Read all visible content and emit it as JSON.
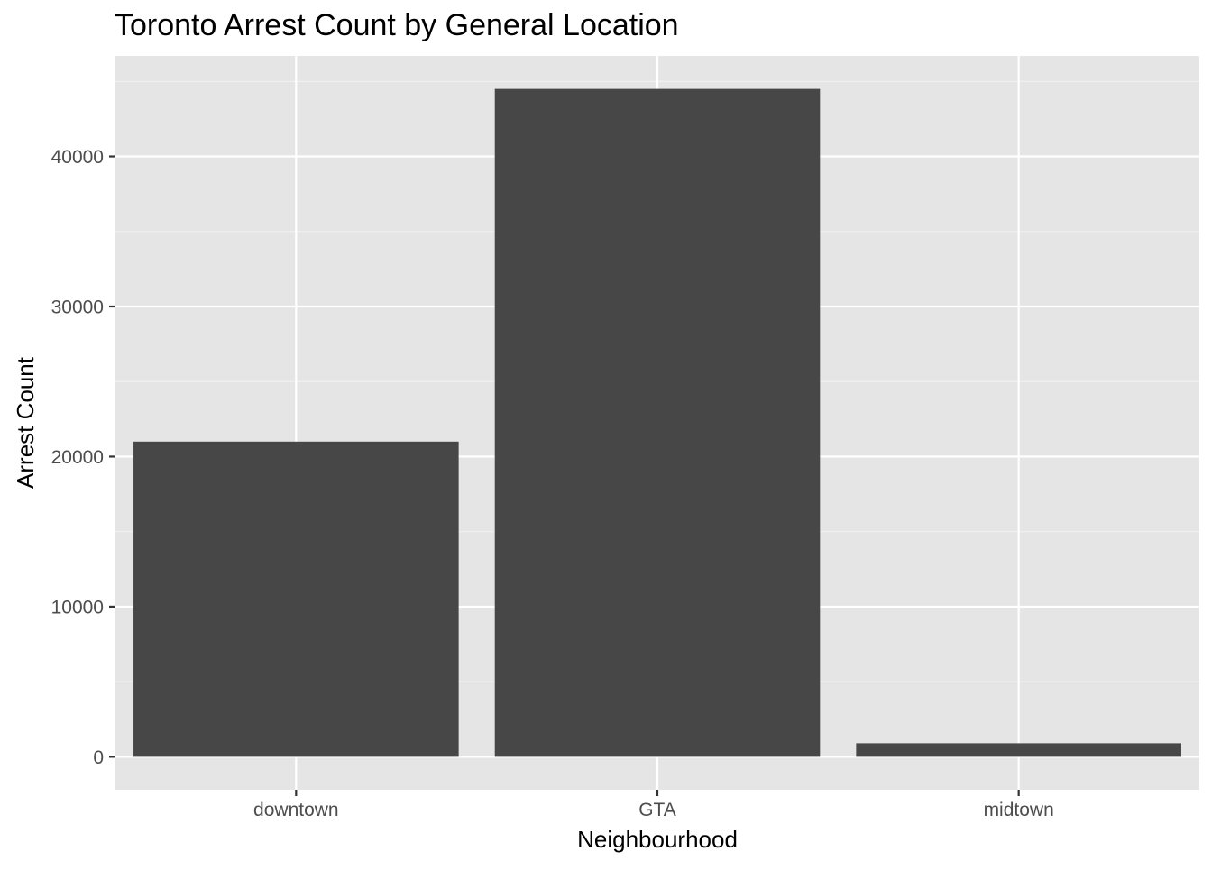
{
  "chart_data": {
    "type": "bar",
    "title": "Toronto Arrest Count by General Location",
    "xlabel": "Neighbourhood",
    "ylabel": "Arrest Count",
    "categories": [
      "downtown",
      "GTA",
      "midtown"
    ],
    "values": [
      21000,
      44500,
      900
    ],
    "ylim": [
      -2200,
      46700
    ],
    "yticks": [
      0,
      10000,
      20000,
      30000,
      40000
    ],
    "ytick_labels": [
      "0",
      "10000",
      "20000",
      "30000",
      "40000"
    ],
    "grid": true,
    "legend": "none",
    "colors": {
      "panel_background": "#e5e5e5",
      "grid_major": "#ffffff",
      "grid_minor": "#f2f2f2",
      "bar_fill": "#474747",
      "tick_label": "#4d4d4d",
      "tick_mark": "#333333",
      "text": "#000000"
    }
  }
}
